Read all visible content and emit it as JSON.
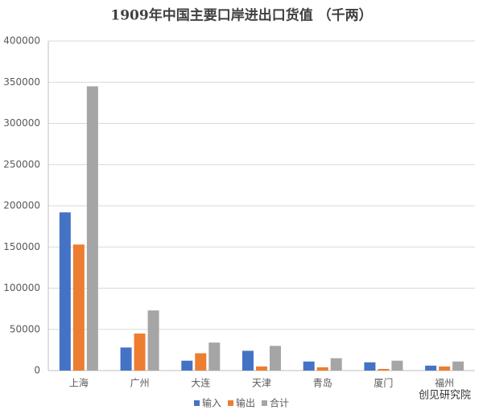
{
  "chart_data": {
    "type": "bar",
    "title": "1909年中国主要口岸进出口货值 （千两）",
    "categories": [
      "上海",
      "广州",
      "大连",
      "天津",
      "青岛",
      "厦门",
      "福州"
    ],
    "series": [
      {
        "name": "输入",
        "color": "#4472c4",
        "values": [
          192000,
          28000,
          12000,
          24000,
          11000,
          10000,
          6000
        ]
      },
      {
        "name": "输出",
        "color": "#ed7d31",
        "values": [
          153000,
          45000,
          21000,
          5000,
          4000,
          2000,
          5000
        ]
      },
      {
        "name": "合计",
        "color": "#a5a5a5",
        "values": [
          345000,
          73000,
          34000,
          30000,
          15000,
          12000,
          11000
        ]
      }
    ],
    "ylim": [
      0,
      400000
    ],
    "yticks": [
      0,
      50000,
      100000,
      150000,
      200000,
      250000,
      300000,
      350000,
      400000
    ],
    "grid": true,
    "legend": "bottom",
    "annotation": "创见研究院"
  }
}
